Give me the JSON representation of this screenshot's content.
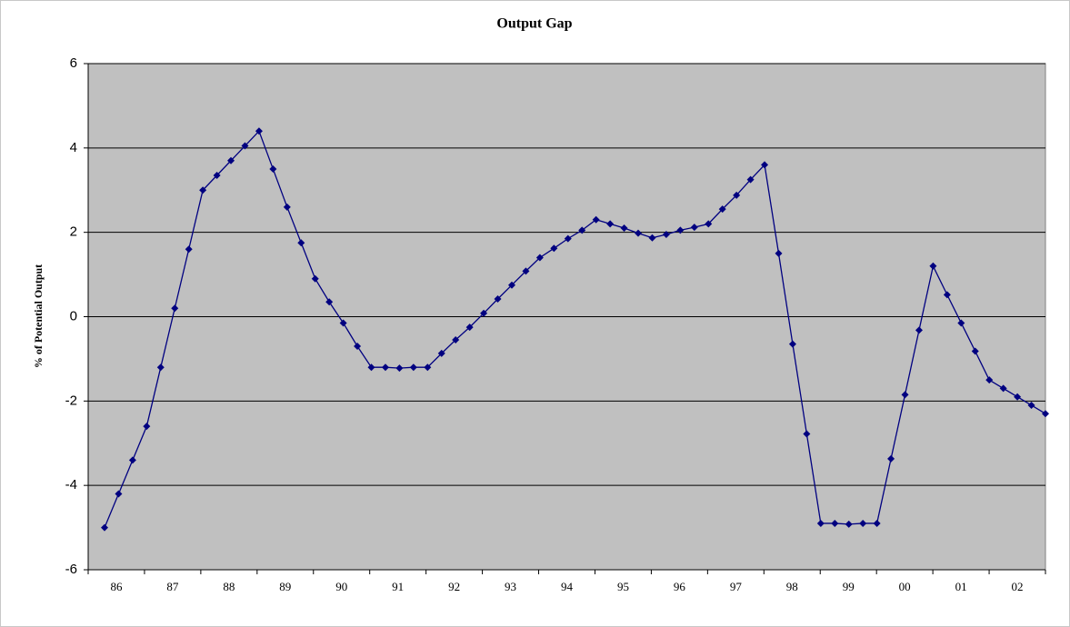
{
  "chart_data": {
    "type": "line",
    "title": "Output Gap",
    "y_label": "% of Potential Output",
    "categories": [
      null,
      "86",
      null,
      null,
      null,
      "87",
      null,
      null,
      null,
      "88",
      null,
      null,
      null,
      "89",
      null,
      null,
      null,
      "90",
      null,
      null,
      null,
      "91",
      null,
      null,
      null,
      "92",
      null,
      null,
      null,
      "93",
      null,
      null,
      null,
      "94",
      null,
      null,
      null,
      "95",
      null,
      null,
      null,
      "96",
      null,
      null,
      null,
      "97",
      null,
      null,
      null,
      "98",
      null,
      null,
      null,
      "99",
      null,
      null,
      null,
      "00",
      null,
      null,
      null,
      "01",
      null,
      null,
      null,
      "02",
      null,
      null
    ],
    "series": [
      {
        "color": "#000080",
        "values": [
          -5.0,
          -4.2,
          -3.4,
          -2.6,
          -1.2,
          0.2,
          1.6,
          3.0,
          3.35,
          3.7,
          4.05,
          4.4,
          3.5,
          2.6,
          1.75,
          0.9,
          0.35,
          -0.15,
          -0.7,
          -1.2,
          -1.2,
          -1.22,
          -1.2,
          -1.2,
          -0.87,
          -0.55,
          -0.25,
          0.08,
          0.42,
          0.75,
          1.08,
          1.4,
          1.62,
          1.85,
          2.05,
          2.3,
          2.2,
          2.1,
          1.98,
          1.87,
          1.95,
          2.05,
          2.12,
          2.2,
          2.55,
          2.88,
          3.25,
          3.6,
          1.5,
          -0.65,
          -2.78,
          -4.9,
          -4.9,
          -4.92,
          -4.9,
          -4.9,
          -3.37,
          -1.85,
          -0.32,
          1.2,
          0.52,
          -0.15,
          -0.82,
          -1.5,
          -1.7,
          -1.9,
          -2.1,
          -2.3
        ]
      }
    ],
    "ylim": [
      -6,
      6
    ],
    "yticks": [
      -6,
      -4,
      -2,
      0,
      2,
      4,
      6
    ],
    "grid": true,
    "plot_background": "#c0c0c0"
  }
}
